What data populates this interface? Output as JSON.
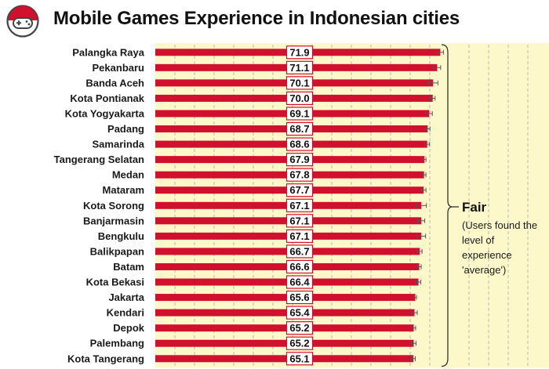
{
  "header": {
    "title": "Mobile Games Experience in Indonesian cities"
  },
  "colors": {
    "bar": "#d0102c",
    "band": "#fdf8c9",
    "grid": "#b8b8b8",
    "bracket": "#333333"
  },
  "band": {
    "title": "Fair",
    "description": "(Users found the level of experience 'average')"
  },
  "chart_data": {
    "type": "bar",
    "orientation": "horizontal",
    "title": "Mobile Games Experience in Indonesian cities",
    "categories": [
      "Palangka Raya",
      "Pekanbaru",
      "Banda Aceh",
      "Kota Pontianak",
      "Kota Yogyakarta",
      "Padang",
      "Samarinda",
      "Tangerang Selatan",
      "Medan",
      "Mataram",
      "Kota Sorong",
      "Banjarmasin",
      "Bengkulu",
      "Balikpapan",
      "Batam",
      "Kota Bekasi",
      "Jakarta",
      "Kendari",
      "Depok",
      "Palembang",
      "Kota Tangerang"
    ],
    "values": [
      71.9,
      71.1,
      70.1,
      70.0,
      69.1,
      68.7,
      68.6,
      67.9,
      67.8,
      67.7,
      67.1,
      67.1,
      67.1,
      66.7,
      66.6,
      66.4,
      65.6,
      65.4,
      65.2,
      65.2,
      65.1
    ],
    "error_margin": [
      0.8,
      0.9,
      1.2,
      0.6,
      0.8,
      0.6,
      0.6,
      0.4,
      0.5,
      0.6,
      1.3,
      0.9,
      1.1,
      0.6,
      0.5,
      0.6,
      0.3,
      0.7,
      0.5,
      0.6,
      0.5
    ],
    "xlim": [
      0,
      75
    ],
    "grid": true,
    "value_labels": true
  }
}
